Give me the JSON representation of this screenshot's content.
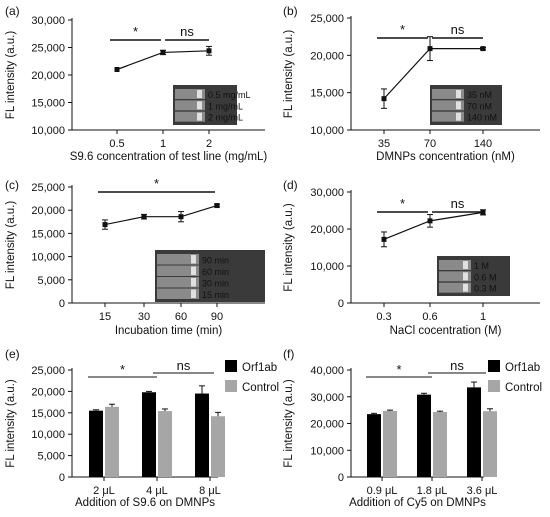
{
  "chart_data": [
    {
      "panel": "(a)",
      "type": "line",
      "ylabel": "FL intensity (a.u.)",
      "xlabel": "S9.6 concentration of test line (mg/mL)",
      "categories": [
        "0.5",
        "1",
        "2"
      ],
      "values": [
        21000,
        24100,
        24400
      ],
      "errors": [
        0,
        400,
        800
      ],
      "yticks": [
        "10,000",
        "15,000",
        "20,000",
        "25,000",
        "30,000"
      ],
      "ylim": [
        10000,
        30000
      ],
      "significance": [
        {
          "from": 0,
          "to": 1,
          "label": "*"
        },
        {
          "from": 1,
          "to": 2,
          "label": "ns"
        }
      ],
      "inset_labels": [
        "0.5 mg/mL",
        "1 mg/mL",
        "2 mg/mL"
      ]
    },
    {
      "panel": "(b)",
      "type": "line",
      "ylabel": "FL intensity (a.u.)",
      "xlabel": "DMNPs concentration (nM)",
      "categories": [
        "35",
        "70",
        "140"
      ],
      "values": [
        14200,
        20900,
        20900
      ],
      "errors": [
        1300,
        1600,
        150
      ],
      "yticks": [
        "10,000",
        "15,000",
        "20,000",
        "25,000"
      ],
      "ylim": [
        10000,
        25000
      ],
      "significance": [
        {
          "from": 0,
          "to": 1,
          "label": "*"
        },
        {
          "from": 1,
          "to": 2,
          "label": "ns"
        }
      ],
      "inset_labels": [
        "35 nM",
        "70 nM",
        "140 nM"
      ]
    },
    {
      "panel": "(c)",
      "type": "line",
      "ylabel": "FL intensity (a.u.)",
      "xlabel": "Incubation time (min)",
      "categories": [
        "15",
        "30",
        "60",
        "90"
      ],
      "values": [
        16900,
        18600,
        18600,
        21000
      ],
      "errors": [
        1000,
        500,
        1100,
        300
      ],
      "yticks": [
        "0",
        "5,000",
        "10,000",
        "15,000",
        "20,000",
        "25,000"
      ],
      "ylim": [
        0,
        25000
      ],
      "significance": [
        {
          "from": 0,
          "to": 3,
          "label": "*"
        }
      ],
      "inset_labels": [
        "90 min",
        "60 min",
        "30 min",
        "15 min"
      ]
    },
    {
      "panel": "(d)",
      "type": "line",
      "ylabel": "FL intensity (a.u.)",
      "xlabel": "NaCl cocentration (M)",
      "categories": [
        "0.3",
        "0.6",
        "1"
      ],
      "values": [
        17200,
        22200,
        24500
      ],
      "errors": [
        2000,
        1700,
        700
      ],
      "yticks": [
        "0",
        "10,000",
        "20,000",
        "30,000"
      ],
      "ylim": [
        0,
        30000
      ],
      "significance": [
        {
          "from": 0,
          "to": 1,
          "label": "*"
        },
        {
          "from": 1,
          "to": 2,
          "label": "ns"
        }
      ],
      "inset_labels": [
        "1 M",
        "0.6 M",
        "0.3 M"
      ]
    },
    {
      "panel": "(e)",
      "type": "bar",
      "ylabel": "FL intensity (a.u.)",
      "xlabel": "Addition of S9.6 on DMNPs",
      "categories": [
        "2 μL",
        "4 μL",
        "8 μL"
      ],
      "series": [
        {
          "name": "Orf1ab",
          "color": "#000000",
          "values": [
            15500,
            19800,
            19500
          ],
          "errors": [
            200,
            200,
            1800
          ]
        },
        {
          "name": "Control",
          "color": "#a6a6a6",
          "values": [
            16400,
            15400,
            14200
          ],
          "errors": [
            600,
            500,
            900
          ]
        }
      ],
      "yticks": [
        "0",
        "5,000",
        "10,000",
        "15,000",
        "20,000",
        "25,000"
      ],
      "ylim": [
        0,
        25000
      ],
      "significance": [
        {
          "from": 0,
          "to": 1,
          "label": "*"
        },
        {
          "from": 1,
          "to": 2,
          "label": "ns"
        }
      ]
    },
    {
      "panel": "(f)",
      "type": "bar",
      "ylabel": "FL intensity (a.u.)",
      "xlabel": "Addition of Cy5 on DMNPs",
      "categories": [
        "0.9 μL",
        "1.8 μL",
        "3.6 μL"
      ],
      "series": [
        {
          "name": "Orf1ab",
          "color": "#000000",
          "values": [
            23500,
            30800,
            33500
          ],
          "errors": [
            300,
            500,
            2000
          ]
        },
        {
          "name": "Control",
          "color": "#a6a6a6",
          "values": [
            24700,
            24300,
            24600
          ],
          "errors": [
            300,
            300,
            900
          ]
        }
      ],
      "yticks": [
        "0",
        "10,000",
        "20,000",
        "30,000",
        "40,000"
      ],
      "ylim": [
        0,
        40000
      ],
      "significance": [
        {
          "from": 0,
          "to": 1,
          "label": "*"
        },
        {
          "from": 1,
          "to": 2,
          "label": "ns"
        }
      ]
    }
  ]
}
